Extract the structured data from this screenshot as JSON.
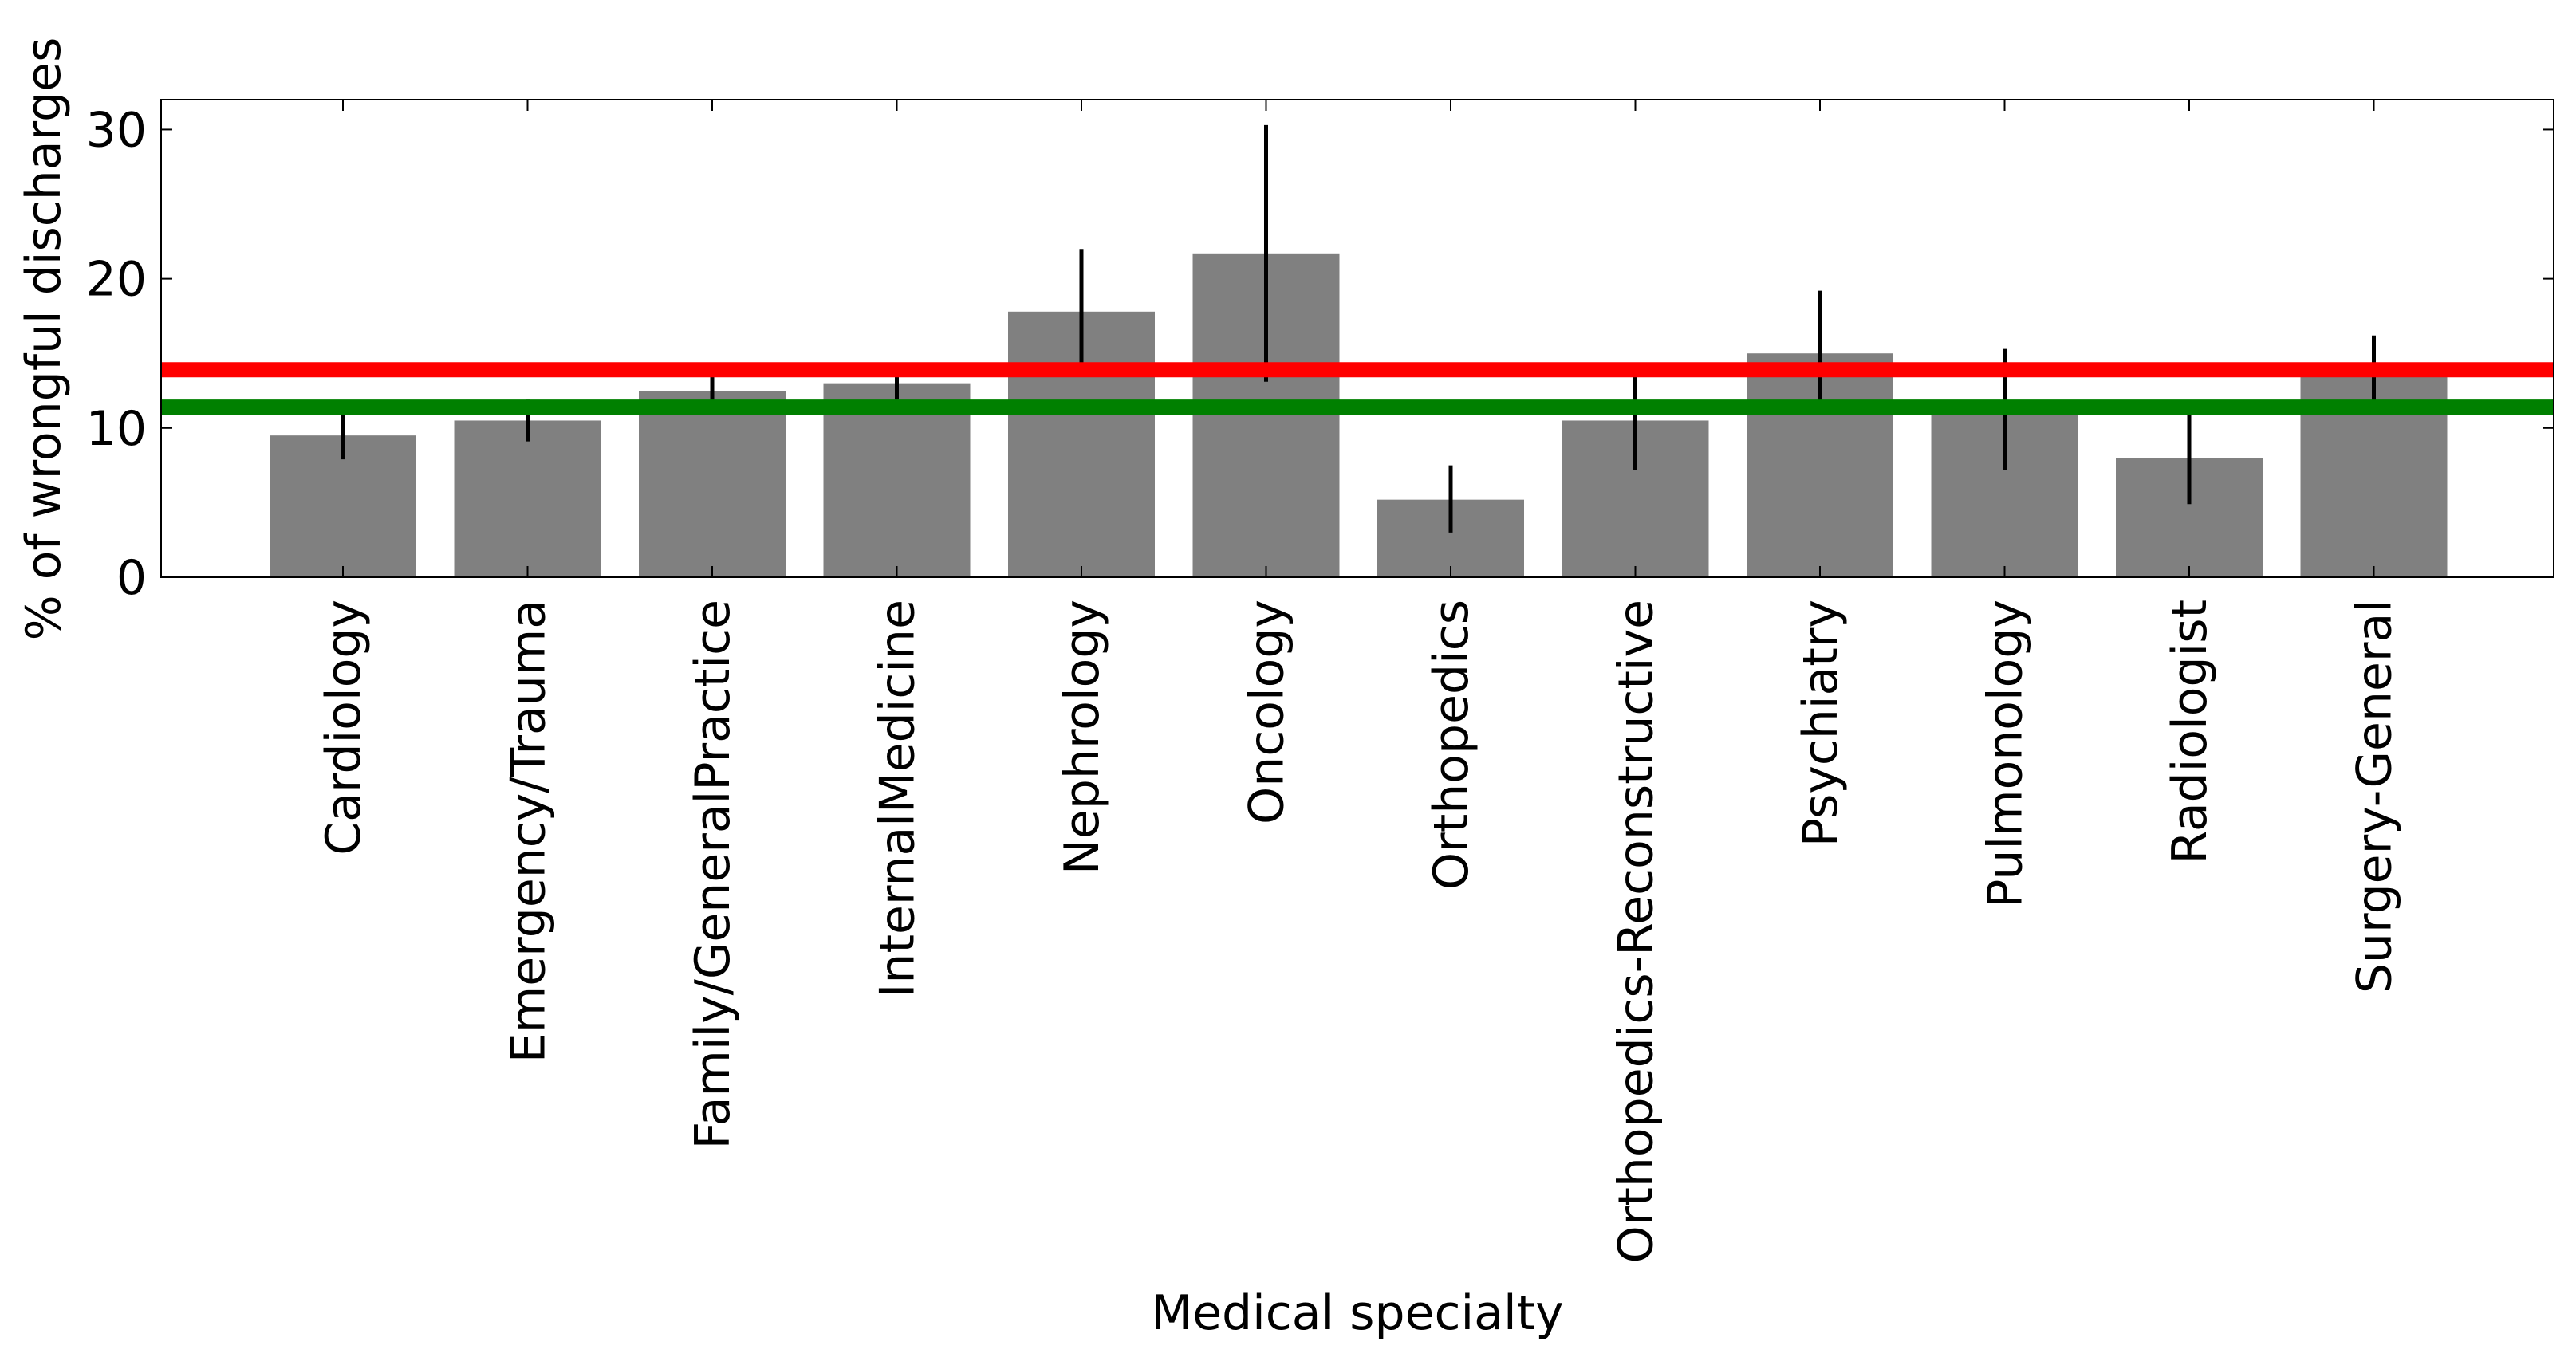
{
  "chart_data": {
    "type": "bar",
    "xlabel": "Medical specialty",
    "ylabel": "% of wrongful discharges",
    "ylim": [
      0,
      32
    ],
    "yticks": [
      0,
      10,
      20,
      30
    ],
    "grid": false,
    "bar_color": "#808080",
    "categories": [
      "Cardiology",
      "Emergency/Trauma",
      "Family/GeneralPractice",
      "InternalMedicine",
      "Nephrology",
      "Oncology",
      "Orthopedics",
      "Orthopedics-Reconstructive",
      "Psychiatry",
      "Pulmonology",
      "Radiologist",
      "Surgery-General"
    ],
    "values": [
      9.5,
      10.5,
      12.5,
      13.0,
      17.8,
      21.7,
      5.2,
      10.5,
      15.0,
      11.5,
      8.0,
      13.8
    ],
    "error_low": [
      7.9,
      9.1,
      11.6,
      11.9,
      14.3,
      13.1,
      3.0,
      7.2,
      10.9,
      7.2,
      4.9,
      11.5
    ],
    "error_high": [
      11.2,
      11.9,
      13.7,
      13.7,
      22.0,
      30.3,
      7.5,
      13.7,
      19.2,
      15.3,
      11.2,
      16.2
    ],
    "reference_lines": [
      {
        "value": 13.9,
        "color": "#ff0000"
      },
      {
        "value": 11.4,
        "color": "#008000"
      }
    ]
  }
}
